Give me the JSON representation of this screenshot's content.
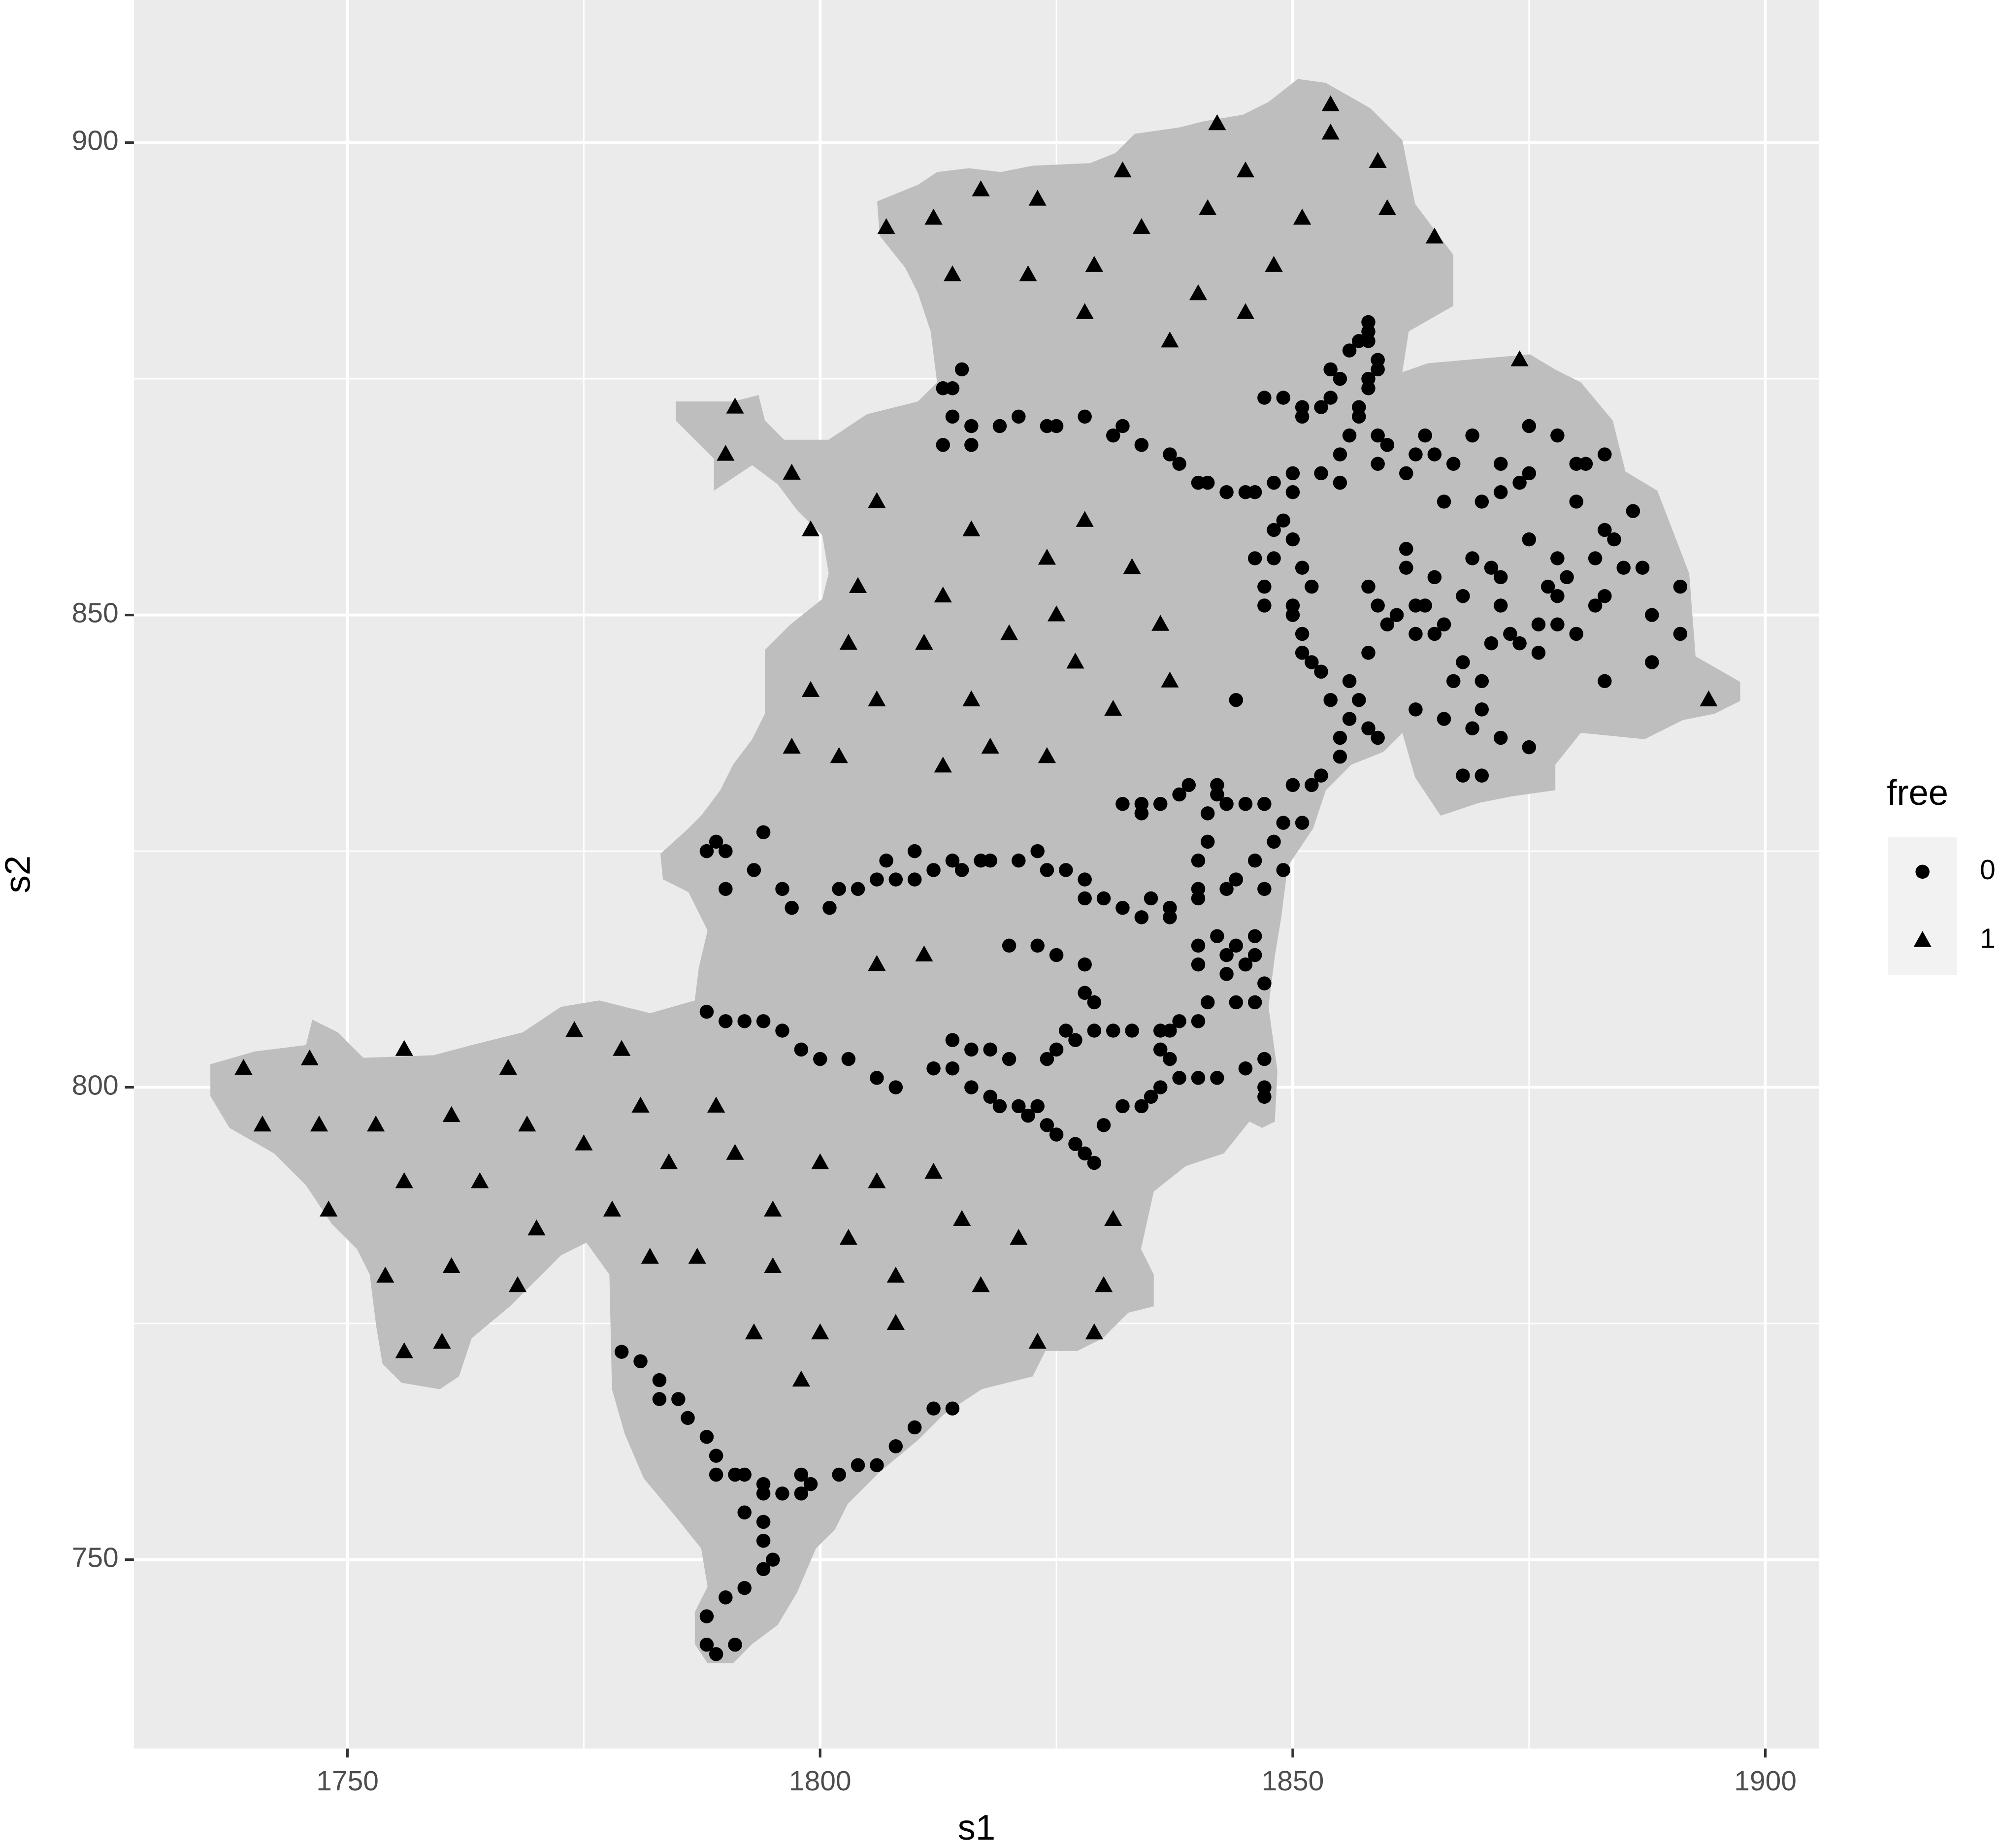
{
  "chart_data": {
    "type": "scatter",
    "x_label": "s1",
    "y_label": "s2",
    "legend_title": "free",
    "legend_position": "right",
    "grid": true,
    "xlim": [
      1727.4,
      1905.7
    ],
    "ylim": [
      730,
      915.1
    ],
    "xticks": [
      1750,
      1800,
      1850,
      1900
    ],
    "yticks": [
      750,
      800,
      850,
      900
    ],
    "series": [
      {
        "name": "0",
        "shape": "circle",
        "color": "#000000",
        "x": [
          1779,
          1781,
          1783,
          1783,
          1785,
          1786,
          1788,
          1789,
          1789,
          1791,
          1792,
          1794,
          1794,
          1796,
          1798,
          1798,
          1799,
          1802,
          1804,
          1806,
          1808,
          1810,
          1812,
          1814,
          1792,
          1794,
          1794,
          1795,
          1794,
          1792,
          1790,
          1788,
          1788,
          1789,
          1791,
          1788,
          1790,
          1792,
          1794,
          1796,
          1798,
          1800,
          1803,
          1806,
          1808,
          1812,
          1814,
          1816,
          1818,
          1819,
          1821,
          1823,
          1822,
          1824,
          1825,
          1827,
          1828,
          1829,
          1830,
          1832,
          1834,
          1835,
          1836,
          1838,
          1840,
          1842,
          1845,
          1847,
          1847,
          1847,
          1820,
          1823,
          1825,
          1828,
          1828,
          1829,
          1829,
          1827,
          1825,
          1824,
          1826,
          1831,
          1833,
          1836,
          1836,
          1837,
          1814,
          1816,
          1818,
          1820,
          1788,
          1789,
          1790,
          1794,
          1790,
          1793,
          1796,
          1797,
          1801,
          1802,
          1804,
          1806,
          1807,
          1808,
          1810,
          1810,
          1812,
          1814,
          1815,
          1817,
          1818,
          1821,
          1823,
          1824,
          1826,
          1828,
          1828,
          1830,
          1832,
          1834,
          1835,
          1837,
          1837,
          1832,
          1834,
          1834,
          1836,
          1838,
          1839,
          1842,
          1842,
          1843,
          1845,
          1847,
          1849,
          1848,
          1849,
          1847,
          1846,
          1844,
          1843,
          1841,
          1841,
          1840,
          1840,
          1840,
          1840,
          1840,
          1842,
          1843,
          1843,
          1844,
          1846,
          1846,
          1845,
          1847,
          1846,
          1844,
          1841,
          1840,
          1838,
          1837,
          1815,
          1813,
          1814,
          1814,
          1813,
          1816,
          1816,
          1819,
          1821,
          1824,
          1825,
          1828,
          1831,
          1832,
          1834,
          1837,
          1838,
          1840,
          1841,
          1843,
          1845,
          1846,
          1848,
          1850,
          1850,
          1849,
          1848,
          1848,
          1846,
          1847,
          1847,
          1850,
          1847,
          1849,
          1851,
          1851,
          1853,
          1854,
          1855,
          1854,
          1856,
          1857,
          1858,
          1858,
          1858,
          1859,
          1859,
          1858,
          1858,
          1857,
          1857,
          1856,
          1855,
          1853,
          1855,
          1859,
          1859,
          1860,
          1850,
          1851,
          1852,
          1850,
          1851,
          1851,
          1852,
          1853,
          1854,
          1856,
          1855,
          1855,
          1853,
          1852,
          1850,
          1851,
          1858,
          1859,
          1844,
          1859,
          1858,
          1860,
          1858,
          1856,
          1857,
          1862,
          1862,
          1863,
          1861,
          1863,
          1864,
          1863,
          1866,
          1865,
          1865,
          1868,
          1866,
          1868,
          1870,
          1870,
          1869,
          1868,
          1870,
          1872,
          1875,
          1867,
          1871,
          1872,
          1873,
          1874,
          1876,
          1876,
          1877,
          1878,
          1879,
          1882,
          1885,
          1887,
          1884,
          1886,
          1883,
          1880,
          1883,
          1881,
          1878,
          1875,
          1874,
          1872,
          1869,
          1867,
          1864,
          1865,
          1863,
          1862,
          1866,
          1870,
          1872,
          1875,
          1880,
          1882,
          1883,
          1883,
          1888,
          1888,
          1891,
          1891,
          1878,
          1880,
          1872,
          1871,
          1869,
          1875,
          1878
        ],
        "y": [
          772,
          771,
          769,
          767,
          767,
          765,
          763,
          761,
          759,
          759,
          759,
          758,
          757,
          757,
          757,
          759,
          758,
          759,
          760,
          760,
          762,
          764,
          766,
          766,
          755,
          754,
          752,
          750,
          749,
          747,
          746,
          744,
          741,
          740,
          741,
          808,
          807,
          807,
          807,
          806,
          804,
          803,
          803,
          801,
          800,
          802,
          802,
          800,
          799,
          798,
          798,
          798,
          797,
          796,
          795,
          794,
          793,
          792,
          796,
          798,
          798,
          799,
          800,
          801,
          801,
          801,
          802,
          800,
          799,
          803,
          815,
          815,
          814,
          813,
          810,
          809,
          806,
          805,
          804,
          803,
          806,
          806,
          806,
          806,
          804,
          803,
          805,
          804,
          804,
          803,
          825,
          826,
          825,
          827,
          821,
          823,
          821,
          819,
          819,
          821,
          821,
          822,
          824,
          822,
          825,
          822,
          823,
          824,
          823,
          824,
          824,
          824,
          825,
          823,
          823,
          822,
          820,
          820,
          819,
          818,
          820,
          819,
          818,
          830,
          830,
          829,
          830,
          831,
          832,
          832,
          831,
          830,
          830,
          830,
          828,
          826,
          823,
          821,
          824,
          822,
          821,
          829,
          826,
          824,
          821,
          820,
          815,
          813,
          816,
          814,
          812,
          815,
          816,
          814,
          813,
          811,
          809,
          809,
          809,
          807,
          807,
          806,
          876,
          874,
          874,
          871,
          868,
          870,
          868,
          870,
          871,
          870,
          870,
          871,
          869,
          870,
          868,
          867,
          866,
          864,
          864,
          863,
          863,
          863,
          864,
          865,
          863,
          860,
          859,
          856,
          856,
          853,
          851,
          851,
          873,
          873,
          872,
          871,
          872,
          873,
          875,
          876,
          878,
          879,
          880,
          881,
          879,
          877,
          876,
          875,
          874,
          872,
          871,
          869,
          867,
          865,
          864,
          869,
          866,
          868,
          858,
          855,
          853,
          850,
          848,
          846,
          845,
          844,
          841,
          839,
          837,
          835,
          833,
          832,
          832,
          828,
          838,
          837,
          841,
          851,
          853,
          849,
          846,
          843,
          841,
          857,
          855,
          851,
          850,
          848,
          851,
          840,
          839,
          854,
          848,
          845,
          849,
          852,
          843,
          840,
          838,
          833,
          833,
          837,
          836,
          843,
          847,
          851,
          848,
          847,
          846,
          849,
          853,
          852,
          854,
          856,
          855,
          855,
          858,
          861,
          859,
          862,
          867,
          866,
          869,
          870,
          864,
          866,
          869,
          866,
          869,
          867,
          867,
          865,
          862,
          862,
          863,
          865,
          866,
          851,
          852,
          843,
          845,
          850,
          848,
          853,
          849,
          848,
          854,
          855,
          856,
          858,
          856
        ]
      },
      {
        "name": "1",
        "shape": "triangle",
        "color": "#000000",
        "x": [
          1854,
          1854,
          1842,
          1845,
          1859,
          1832,
          1817,
          1823,
          1841,
          1851,
          1860,
          1865,
          1807,
          1812,
          1834,
          1848,
          1829,
          1822,
          1814,
          1840,
          1845,
          1828,
          1837,
          1874,
          1791,
          1790,
          1797,
          1799,
          1806,
          1816,
          1828,
          1824,
          1833,
          1804,
          1813,
          1825,
          1836,
          1803,
          1811,
          1820,
          1827,
          1799,
          1806,
          1816,
          1837,
          1831,
          1797,
          1802,
          1813,
          1818,
          1824,
          1894,
          1806,
          1811,
          1774,
          1779,
          1739,
          1746,
          1756,
          1767,
          1741,
          1747,
          1753,
          1761,
          1769,
          1775,
          1781,
          1789,
          1784,
          1791,
          1800,
          1748,
          1756,
          1764,
          1770,
          1778,
          1795,
          1806,
          1812,
          1815,
          1831,
          1754,
          1761,
          1768,
          1782,
          1787,
          1795,
          1803,
          1821,
          1808,
          1817,
          1830,
          1756,
          1760,
          1793,
          1800,
          1808,
          1823,
          1829,
          1798
        ],
        "y": [
          904,
          901,
          902,
          897,
          898,
          897,
          895,
          894,
          893,
          892,
          893,
          890,
          891,
          892,
          891,
          887,
          887,
          886,
          886,
          884,
          882,
          882,
          879,
          877,
          872,
          867,
          865,
          859,
          862,
          859,
          860,
          856,
          855,
          853,
          852,
          850,
          849,
          847,
          847,
          848,
          845,
          842,
          841,
          841,
          843,
          840,
          836,
          835,
          834,
          836,
          835,
          841,
          813,
          814,
          806,
          804,
          802,
          803,
          804,
          802,
          796,
          796,
          796,
          797,
          796,
          794,
          798,
          798,
          792,
          793,
          792,
          787,
          790,
          790,
          785,
          787,
          787,
          790,
          791,
          786,
          786,
          780,
          781,
          779,
          782,
          782,
          781,
          784,
          784,
          780,
          779,
          779,
          772,
          773,
          774,
          774,
          775,
          773,
          774,
          769
        ]
      }
    ]
  }
}
